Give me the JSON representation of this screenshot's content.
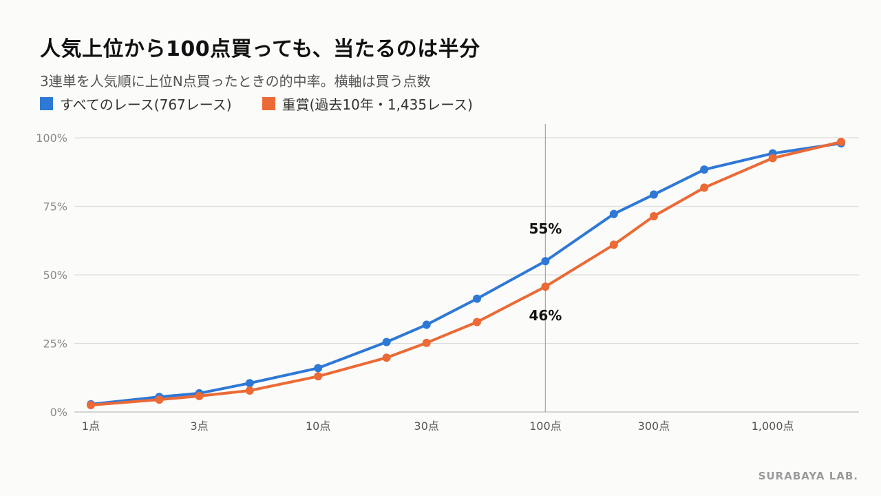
{
  "header": {
    "title": "人気上位から100点買っても、当たるのは半分",
    "subtitle": "3連単を人気順に上位N点買ったときの的中率。横軸は買う点数"
  },
  "legend": {
    "items": [
      {
        "label": "すべてのレース(767レース)",
        "color": "#2e78d6"
      },
      {
        "label": "重賞(過去10年・1,435レース)",
        "color": "#eb6a36"
      }
    ]
  },
  "credit": "SURABAYA LAB.",
  "chart_data": {
    "type": "line",
    "x_scale": "log",
    "xlim": [
      1,
      3000
    ],
    "ylim": [
      0,
      100
    ],
    "y_ticks": [
      {
        "value": 0,
        "label": "0%"
      },
      {
        "value": 25,
        "label": "25%"
      },
      {
        "value": 50,
        "label": "50%"
      },
      {
        "value": 75,
        "label": "75%"
      },
      {
        "value": 100,
        "label": "100%"
      }
    ],
    "x_ticks": [
      {
        "value": 1,
        "label": "1点"
      },
      {
        "value": 3,
        "label": "3点"
      },
      {
        "value": 10,
        "label": "10点"
      },
      {
        "value": 30,
        "label": "30点"
      },
      {
        "value": 100,
        "label": "100点"
      },
      {
        "value": 300,
        "label": "300点"
      },
      {
        "value": 1000,
        "label": "1,000点"
      }
    ],
    "grid": true,
    "x": [
      1,
      2,
      3,
      5,
      10,
      20,
      30,
      50,
      100,
      200,
      300,
      500,
      1000,
      2000
    ],
    "series": [
      {
        "name": "すべてのレース(767レース)",
        "color": "#2e78d6",
        "values": [
          2.8,
          5.5,
          6.8,
          10.5,
          16,
          25.5,
          31.8,
          41.3,
          55,
          72.2,
          79.3,
          88.4,
          94.3,
          98
        ]
      },
      {
        "name": "重賞(過去10年・1,435レース)",
        "color": "#eb6a36",
        "values": [
          2.5,
          4.5,
          5.8,
          7.8,
          13,
          19.8,
          25.2,
          32.8,
          45.7,
          61,
          71.4,
          81.8,
          92.6,
          98.5
        ]
      }
    ],
    "reference_line": {
      "x": 100
    },
    "annotations": [
      {
        "text": "55%",
        "x": 100,
        "y": 55,
        "placement": "above"
      },
      {
        "text": "46%",
        "x": 100,
        "y": 46,
        "placement": "below"
      }
    ]
  }
}
